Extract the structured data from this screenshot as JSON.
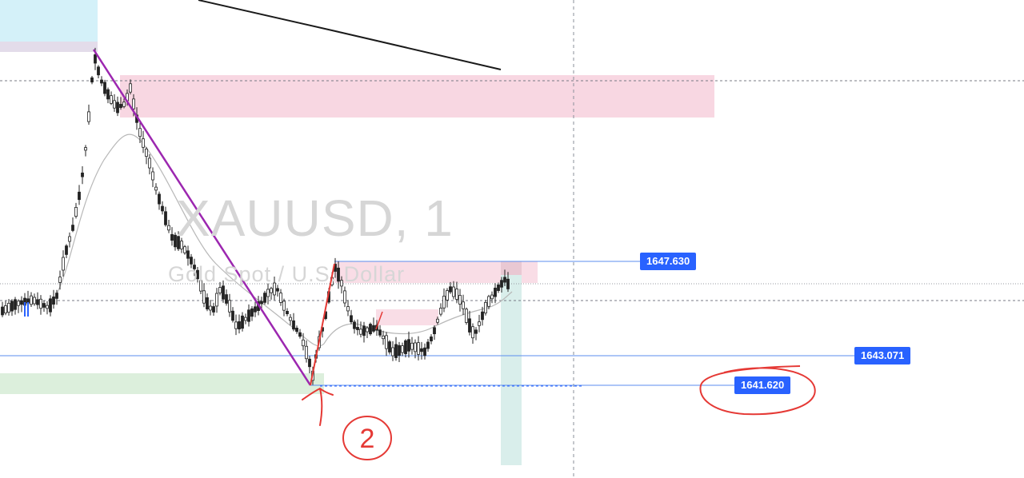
{
  "watermark": {
    "symbol": "XAUUSD, 1",
    "description": "Gold Spot / U.S. Dollar"
  },
  "price_labels": [
    {
      "name": "high",
      "value": "1647.630"
    },
    {
      "name": "mid",
      "value": "1643.071"
    },
    {
      "name": "low",
      "value": "1641.620"
    }
  ],
  "annotations": {
    "arrow_note": "2"
  },
  "colors": {
    "bullish_candle": "#222222",
    "bearish_candle": "#222222",
    "trendline_purple": "#9c27b0",
    "trendline_red": "#e53935",
    "supply_zone": "#f8bbd0",
    "demand_zone": "#c8e6c9",
    "target_zone": "#b2dfdb",
    "price_badge": "#2962ff",
    "handwriting": "#e53935"
  }
}
